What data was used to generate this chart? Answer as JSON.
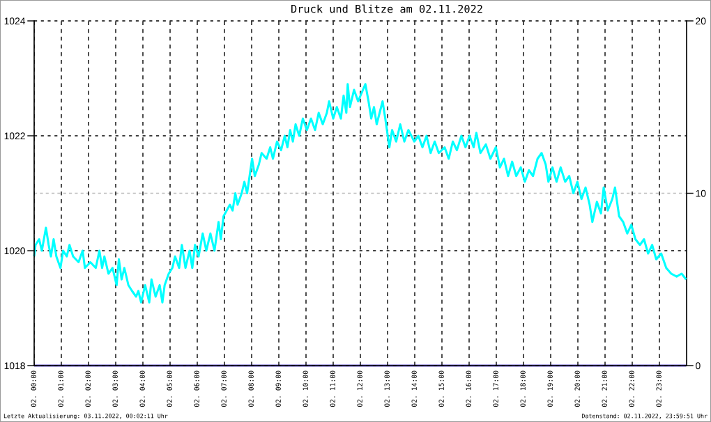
{
  "chart_data": {
    "type": "line",
    "title": "Druck und Blitze am 02.11.2022",
    "series": [
      {
        "color": "#00ffff",
        "x": [
          "2022-11-02T00:00",
          "2022-11-02T00:03",
          "2022-11-02T00:11",
          "2022-11-02T00:17",
          "2022-11-02T00:26",
          "2022-11-02T00:32",
          "2022-11-02T00:37",
          "2022-11-02T00:43",
          "2022-11-02T00:49",
          "2022-11-02T00:58",
          "2022-11-02T01:04",
          "2022-11-02T01:12",
          "2022-11-02T01:18",
          "2022-11-02T01:26",
          "2022-11-02T01:38",
          "2022-11-02T01:47",
          "2022-11-02T01:52",
          "2022-11-02T02:04",
          "2022-11-02T02:16",
          "2022-11-02T02:24",
          "2022-11-02T02:30",
          "2022-11-02T02:35",
          "2022-11-02T02:44",
          "2022-11-02T02:53",
          "2022-11-02T03:02",
          "2022-11-02T03:07",
          "2022-11-02T03:13",
          "2022-11-02T03:19",
          "2022-11-02T03:28",
          "2022-11-02T03:36",
          "2022-11-02T03:45",
          "2022-11-02T03:50",
          "2022-11-02T03:56",
          "2022-11-02T04:05",
          "2022-11-02T04:14",
          "2022-11-02T04:19",
          "2022-11-02T04:28",
          "2022-11-02T04:37",
          "2022-11-02T04:43",
          "2022-11-02T04:48",
          "2022-11-02T04:57",
          "2022-11-02T05:05",
          "2022-11-02T05:11",
          "2022-11-02T05:20",
          "2022-11-02T05:26",
          "2022-11-02T05:34",
          "2022-11-02T05:43",
          "2022-11-02T05:49",
          "2022-11-02T05:55",
          "2022-11-02T06:03",
          "2022-11-02T06:12",
          "2022-11-02T06:20",
          "2022-11-02T06:29",
          "2022-11-02T06:38",
          "2022-11-02T06:47",
          "2022-11-02T06:52",
          "2022-11-02T06:58",
          "2022-11-02T07:05",
          "2022-11-02T07:12",
          "2022-11-02T07:18",
          "2022-11-02T07:24",
          "2022-11-02T07:29",
          "2022-11-02T07:38",
          "2022-11-02T07:44",
          "2022-11-02T07:50",
          "2022-11-02T08:01",
          "2022-11-02T08:07",
          "2022-11-02T08:16",
          "2022-11-02T08:22",
          "2022-11-02T08:33",
          "2022-11-02T08:41",
          "2022-11-02T08:47",
          "2022-11-02T08:56",
          "2022-11-02T09:05",
          "2022-11-02T09:13",
          "2022-11-02T09:19",
          "2022-11-02T09:25",
          "2022-11-02T09:31",
          "2022-11-02T09:37",
          "2022-11-02T09:45",
          "2022-11-02T09:53",
          "2022-11-02T10:02",
          "2022-11-02T10:11",
          "2022-11-02T10:20",
          "2022-11-02T10:28",
          "2022-11-02T10:37",
          "2022-11-02T10:46",
          "2022-11-02T10:51",
          "2022-11-02T11:00",
          "2022-11-02T11:08",
          "2022-11-02T11:17",
          "2022-11-02T11:23",
          "2022-11-02T11:29",
          "2022-11-02T11:32",
          "2022-11-02T11:37",
          "2022-11-02T11:46",
          "2022-11-02T11:55",
          "2022-11-02T12:11",
          "2022-11-02T12:18",
          "2022-11-02T12:24",
          "2022-11-02T12:30",
          "2022-11-02T12:36",
          "2022-11-02T12:49",
          "2022-11-02T12:55",
          "2022-11-02T13:04",
          "2022-11-02T13:10",
          "2022-11-02T13:19",
          "2022-11-02T13:28",
          "2022-11-02T13:37",
          "2022-11-02T13:46",
          "2022-11-02T13:59",
          "2022-11-02T14:08",
          "2022-11-02T14:17",
          "2022-11-02T14:26",
          "2022-11-02T14:35",
          "2022-11-02T14:44",
          "2022-11-02T14:53",
          "2022-11-02T15:06",
          "2022-11-02T15:15",
          "2022-11-02T15:24",
          "2022-11-02T15:33",
          "2022-11-02T15:43",
          "2022-11-02T15:52",
          "2022-11-02T16:01",
          "2022-11-02T16:10",
          "2022-11-02T16:16",
          "2022-11-02T16:25",
          "2022-11-02T16:37",
          "2022-11-02T16:47",
          "2022-11-02T16:59",
          "2022-11-02T17:08",
          "2022-11-02T17:17",
          "2022-11-02T17:26",
          "2022-11-02T17:35",
          "2022-11-02T17:44",
          "2022-11-02T17:54",
          "2022-11-02T18:03",
          "2022-11-02T18:12",
          "2022-11-02T18:21",
          "2022-11-02T18:31",
          "2022-11-02T18:40",
          "2022-11-02T18:49",
          "2022-11-02T18:55",
          "2022-11-02T19:04",
          "2022-11-02T19:13",
          "2022-11-02T19:22",
          "2022-11-02T19:32",
          "2022-11-02T19:41",
          "2022-11-02T19:50",
          "2022-11-02T19:59",
          "2022-11-02T20:08",
          "2022-11-02T20:17",
          "2022-11-02T20:26",
          "2022-11-02T20:32",
          "2022-11-02T20:42",
          "2022-11-02T20:51",
          "2022-11-02T20:57",
          "2022-11-02T21:06",
          "2022-11-02T21:16",
          "2022-11-02T21:22",
          "2022-11-02T21:31",
          "2022-11-02T21:40",
          "2022-11-02T21:49",
          "2022-11-02T21:58",
          "2022-11-02T22:07",
          "2022-11-02T22:17",
          "2022-11-02T22:26",
          "2022-11-02T22:35",
          "2022-11-02T22:44",
          "2022-11-02T22:53",
          "2022-11-02T23:04",
          "2022-11-02T23:15",
          "2022-11-02T23:26",
          "2022-11-02T23:38",
          "2022-11-02T23:49",
          "2022-11-02T23:59"
        ],
        "values": [
          1019.9,
          1020.1,
          1020.2,
          1020.0,
          1020.4,
          1020.1,
          1019.9,
          1020.2,
          1019.9,
          1019.7,
          1020.0,
          1019.9,
          1020.1,
          1019.9,
          1019.8,
          1020.0,
          1019.7,
          1019.8,
          1019.7,
          1020.0,
          1019.7,
          1019.9,
          1019.6,
          1019.7,
          1019.4,
          1019.85,
          1019.5,
          1019.7,
          1019.4,
          1019.3,
          1019.2,
          1019.3,
          1019.1,
          1019.4,
          1019.1,
          1019.5,
          1019.2,
          1019.4,
          1019.1,
          1019.4,
          1019.6,
          1019.7,
          1019.9,
          1019.7,
          1020.1,
          1019.7,
          1020.0,
          1019.7,
          1020.1,
          1019.9,
          1020.3,
          1020.0,
          1020.3,
          1020.0,
          1020.5,
          1020.2,
          1020.6,
          1020.7,
          1020.8,
          1020.7,
          1021.0,
          1020.8,
          1021.0,
          1021.2,
          1021.0,
          1021.6,
          1021.3,
          1021.5,
          1021.7,
          1021.6,
          1021.8,
          1021.6,
          1021.9,
          1021.75,
          1022.0,
          1021.8,
          1022.1,
          1021.9,
          1022.2,
          1022.0,
          1022.3,
          1022.1,
          1022.3,
          1022.1,
          1022.4,
          1022.2,
          1022.4,
          1022.6,
          1022.3,
          1022.5,
          1022.3,
          1022.7,
          1022.4,
          1022.9,
          1022.5,
          1022.8,
          1022.6,
          1022.9,
          1022.6,
          1022.3,
          1022.5,
          1022.2,
          1022.6,
          1022.3,
          1021.8,
          1022.1,
          1021.9,
          1022.2,
          1021.9,
          1022.1,
          1021.9,
          1022.0,
          1021.8,
          1022.0,
          1021.7,
          1021.9,
          1021.7,
          1021.8,
          1021.6,
          1021.9,
          1021.75,
          1022.0,
          1021.8,
          1022.0,
          1021.8,
          1022.05,
          1021.7,
          1021.85,
          1021.6,
          1021.8,
          1021.45,
          1021.6,
          1021.3,
          1021.55,
          1021.3,
          1021.45,
          1021.2,
          1021.4,
          1021.3,
          1021.6,
          1021.7,
          1021.5,
          1021.2,
          1021.45,
          1021.2,
          1021.45,
          1021.2,
          1021.3,
          1021.0,
          1021.2,
          1020.9,
          1021.1,
          1020.8,
          1020.5,
          1020.85,
          1020.65,
          1021.1,
          1020.7,
          1020.9,
          1021.1,
          1020.6,
          1020.5,
          1020.3,
          1020.45,
          1020.2,
          1020.1,
          1020.2,
          1019.95,
          1020.1,
          1019.85,
          1019.95,
          1019.7,
          1019.6,
          1019.55,
          1019.6,
          1019.5
        ]
      },
      {
        "color": "#6a5acd",
        "axis": "y2",
        "x": [
          "2022-11-02T00:00",
          "2022-11-02T23:59"
        ],
        "values": [
          0,
          0
        ]
      }
    ],
    "xlim": [
      "2022-11-02T00:00",
      "2022-11-03T00:00"
    ],
    "xticks": [
      {
        "value": "2022-11-02T00:00",
        "label": "02. 00:00"
      },
      {
        "value": "2022-11-02T01:00",
        "label": "02. 01:00"
      },
      {
        "value": "2022-11-02T02:00",
        "label": "02. 02:00"
      },
      {
        "value": "2022-11-02T03:00",
        "label": "02. 03:00"
      },
      {
        "value": "2022-11-02T04:00",
        "label": "02. 04:00"
      },
      {
        "value": "2022-11-02T05:00",
        "label": "02. 05:00"
      },
      {
        "value": "2022-11-02T06:00",
        "label": "02. 06:00"
      },
      {
        "value": "2022-11-02T07:00",
        "label": "02. 07:00"
      },
      {
        "value": "2022-11-02T08:00",
        "label": "02. 08:00"
      },
      {
        "value": "2022-11-02T09:00",
        "label": "02. 09:00"
      },
      {
        "value": "2022-11-02T10:00",
        "label": "02. 10:00"
      },
      {
        "value": "2022-11-02T11:00",
        "label": "02. 11:00"
      },
      {
        "value": "2022-11-02T12:00",
        "label": "02. 12:00"
      },
      {
        "value": "2022-11-02T13:00",
        "label": "02. 13:00"
      },
      {
        "value": "2022-11-02T14:00",
        "label": "02. 14:00"
      },
      {
        "value": "2022-11-02T15:00",
        "label": "02. 15:00"
      },
      {
        "value": "2022-11-02T16:00",
        "label": "02. 16:00"
      },
      {
        "value": "2022-11-02T17:00",
        "label": "02. 17:00"
      },
      {
        "value": "2022-11-02T18:00",
        "label": "02. 18:00"
      },
      {
        "value": "2022-11-02T19:00",
        "label": "02. 19:00"
      },
      {
        "value": "2022-11-02T20:00",
        "label": "02. 20:00"
      },
      {
        "value": "2022-11-02T21:00",
        "label": "02. 21:00"
      },
      {
        "value": "2022-11-02T22:00",
        "label": "02. 22:00"
      },
      {
        "value": "2022-11-02T23:00",
        "label": "02. 23:00"
      }
    ],
    "ylim": [
      1018,
      1024
    ],
    "yticks": [
      1018,
      1020,
      1022,
      1024
    ],
    "y2lim": [
      0,
      20
    ],
    "y2ticks": [
      0,
      10,
      20
    ],
    "grid": true,
    "ref_lines": [
      {
        "axis": "y2",
        "value": 10,
        "color": "#bbbbbb",
        "line_style": "dashed"
      }
    ],
    "annotations": [
      "Letzte Aktualisierung: 03.11.2022, 00:02:11 Uhr",
      "Datenstand: 02.11.2022, 23:59:51 Uhr"
    ]
  }
}
